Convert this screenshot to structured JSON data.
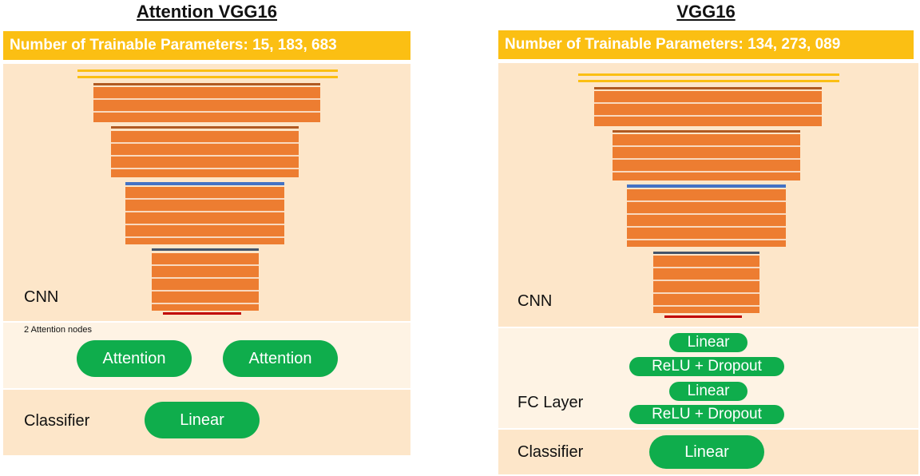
{
  "left": {
    "title": "Attention VGG16",
    "params_label": "Number of Trainable Parameters: 15, 183, 683",
    "cnn_label": "CNN",
    "attention_caption": "2 Attention nodes",
    "attention_nodes": [
      "Attention",
      "Attention"
    ],
    "classifier_label": "Classifier",
    "classifier_node": "Linear"
  },
  "right": {
    "title": "VGG16",
    "params_label": "Number of Trainable Parameters: 134, 273, 089",
    "cnn_label": "CNN",
    "fc_label": "FC Layer",
    "fc_nodes": [
      "Linear",
      "ReLU + Dropout",
      "Linear",
      "ReLU + Dropout"
    ],
    "classifier_label": "Classifier",
    "classifier_node": "Linear"
  },
  "colors": {
    "param_bar": "#fbbf13",
    "conv_block": "#ed7d31",
    "pill": "#0fad4c",
    "input_bar": "#fbbf13",
    "pool_1": "#b05a22",
    "pool_2": "#b05a22",
    "pool_3": "#4472c4",
    "pool_4": "#44546a",
    "pool_5": "#c00000"
  }
}
